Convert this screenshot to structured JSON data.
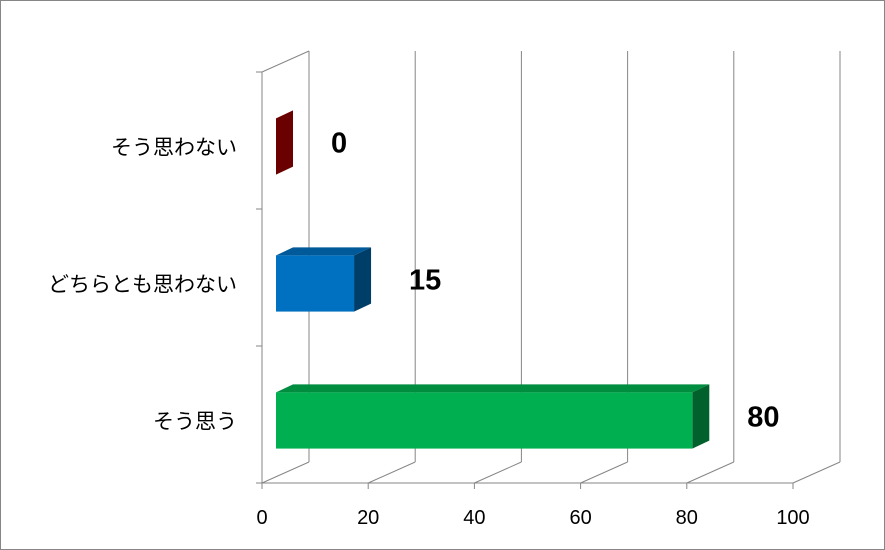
{
  "chart_data": {
    "type": "bar",
    "orientation": "horizontal",
    "style": "3d",
    "categories": [
      "そう思わない",
      "どちらとも思わない",
      "そう思う"
    ],
    "values": [
      0,
      15,
      80
    ],
    "colors": [
      "#C00000",
      "#0070C0",
      "#00B050"
    ],
    "title": "",
    "xlabel": "",
    "ylabel": "",
    "xlim": [
      0,
      100
    ],
    "xticks": [
      0,
      20,
      40,
      60,
      80,
      100
    ],
    "xtick_labels": [
      "0",
      "20",
      "40",
      "60",
      "80",
      "100"
    ],
    "grid": true,
    "legend": "none",
    "data_labels": [
      "0",
      "15",
      "80"
    ]
  }
}
